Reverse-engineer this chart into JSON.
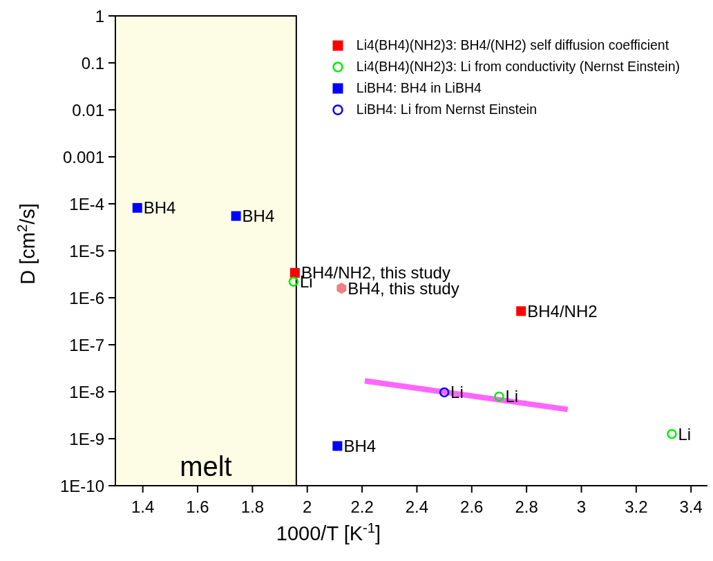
{
  "chart_data": {
    "type": "scatter",
    "xlabel": "1000/T [K$^{-1}$]",
    "ylabel": "D [cm$^{2}$/s]",
    "log": "y",
    "legend": "top right",
    "xlim": [
      1.3,
      3.46
    ],
    "xticks": [
      1.4,
      1.6,
      1.8,
      2,
      2.2,
      2.4,
      2.6,
      2.8,
      3,
      3.2,
      3.4
    ],
    "ylim": [
      1e-10,
      1
    ],
    "yticks": [
      {
        "value": 1e-10,
        "label": "1E-10"
      },
      {
        "value": 1e-09,
        "label": "1E-9"
      },
      {
        "value": 1e-08,
        "label": "1E-8"
      },
      {
        "value": 1e-07,
        "label": "1E-7"
      },
      {
        "value": 1e-06,
        "label": "1E-6"
      },
      {
        "value": 1e-05,
        "label": "1E-5"
      },
      {
        "value": 0.0001,
        "label": "1E-4"
      },
      0.001,
      0.01,
      0.1,
      1
    ],
    "bands": [
      {
        "axis": "x",
        "from": 1.3,
        "to": 1.96,
        "label": "melt",
        "color": "#fdfde6"
      }
    ],
    "series": [
      {
        "name": "Li4(BH4)(NH2)3: BH4/(NH2) self diffusion coefficient",
        "color": "#ff0000",
        "marker": "square",
        "x": [
          1.955,
          2.78
        ],
        "values": [
          3.4e-06,
          5.2e-07
        ],
        "value_labels": [
          "BH4/NH2, this study",
          "BH4/NH2"
        ]
      },
      {
        "name": "Li4(BH4)(NH2)3: Li from conductivity (Nernst Einstein)",
        "color": "#00ee00",
        "marker": "circle",
        "x": [
          1.95,
          2.7,
          3.33
        ],
        "values": [
          2.2e-06,
          7.9e-09,
          1.26e-09
        ],
        "value_labels": [
          "Li",
          "Li",
          "Li"
        ]
      },
      {
        "name": "LiBH4: BH4 in LiBH4",
        "color": "#0000ff",
        "marker": "square",
        "x": [
          1.38,
          1.74,
          2.11
        ],
        "values": [
          8.2e-05,
          5.5e-05,
          7e-10
        ],
        "value_labels": [
          "BH4",
          "BH4",
          "BH4"
        ]
      },
      {
        "name": "LiBH4: Li from Nernst Einstein",
        "color": "#0000ff",
        "marker": "circle",
        "x": [
          2.5
        ],
        "values": [
          9.7e-09
        ],
        "value_labels": [
          "Li"
        ]
      },
      {
        "color": "#f08080",
        "x": [
          2.125
        ],
        "values": [
          1.6e-06
        ],
        "value_labels": [
          "BH4, this study"
        ]
      },
      {
        "type": "line",
        "color": "#ff66ff",
        "marker": "none",
        "x": [
          2.21,
          2.95
        ],
        "values": [
          1.7e-08,
          4.2e-09
        ]
      }
    ]
  }
}
